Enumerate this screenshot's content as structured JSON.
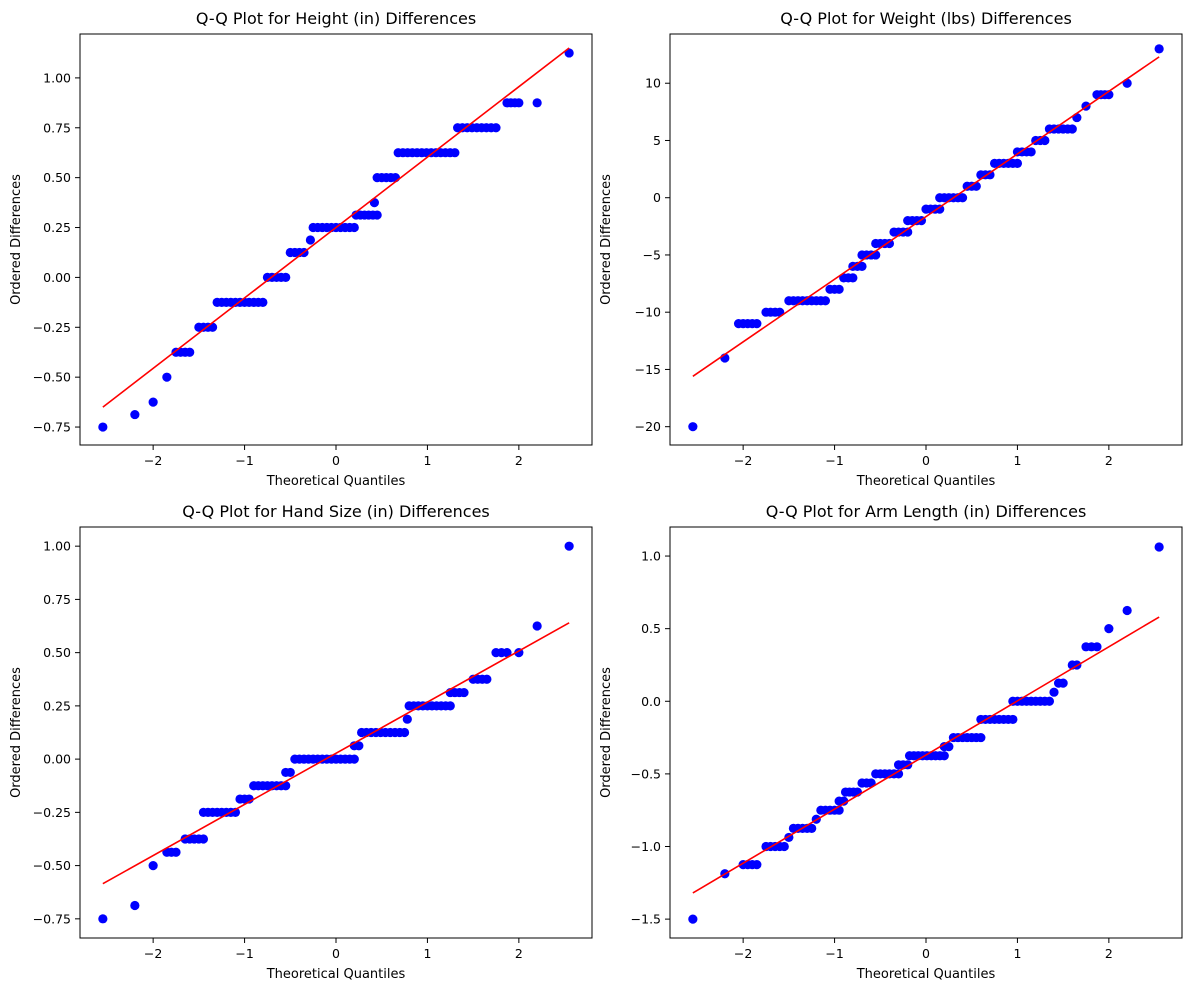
{
  "figure": {
    "background": "#ffffff",
    "point_color": "#0000ff",
    "line_color": "#ff0000"
  },
  "chart_data": [
    {
      "type": "scatter",
      "title": "Q-Q Plot for Height (in) Differences",
      "xlabel": "Theoretical Quantiles",
      "ylabel": "Ordered Differences",
      "xlim": [
        -2.8,
        2.8
      ],
      "ylim": [
        -0.84,
        1.22
      ],
      "xticks": [
        {
          "v": -2,
          "label": "−2"
        },
        {
          "v": -1,
          "label": "−1"
        },
        {
          "v": 0,
          "label": "0"
        },
        {
          "v": 1,
          "label": "1"
        },
        {
          "v": 2,
          "label": "2"
        }
      ],
      "yticks": [
        {
          "v": -0.75,
          "label": "−0.75"
        },
        {
          "v": -0.5,
          "label": "−0.50"
        },
        {
          "v": -0.25,
          "label": "−0.25"
        },
        {
          "v": 0,
          "label": "0.00"
        },
        {
          "v": 0.25,
          "label": "0.25"
        },
        {
          "v": 0.5,
          "label": "0.50"
        },
        {
          "v": 0.75,
          "label": "0.75"
        },
        {
          "v": 1.0,
          "label": "1.00"
        }
      ],
      "steps": [
        {
          "x0": -2.55,
          "x1": -2.55,
          "y": -0.75
        },
        {
          "x0": -2.2,
          "x1": -2.2,
          "y": -0.6875
        },
        {
          "x0": -2.0,
          "x1": -2.0,
          "y": -0.625
        },
        {
          "x0": -1.85,
          "x1": -1.85,
          "y": -0.5
        },
        {
          "x0": -1.75,
          "x1": -1.6,
          "y": -0.375
        },
        {
          "x0": -1.5,
          "x1": -1.35,
          "y": -0.25
        },
        {
          "x0": -1.3,
          "x1": -0.8,
          "y": -0.125
        },
        {
          "x0": -0.75,
          "x1": -0.55,
          "y": 0.0
        },
        {
          "x0": -0.5,
          "x1": -0.35,
          "y": 0.125
        },
        {
          "x0": -0.28,
          "x1": -0.28,
          "y": 0.1875
        },
        {
          "x0": -0.25,
          "x1": 0.2,
          "y": 0.25
        },
        {
          "x0": 0.22,
          "x1": 0.45,
          "y": 0.3125
        },
        {
          "x0": 0.42,
          "x1": 0.42,
          "y": 0.375
        },
        {
          "x0": 0.45,
          "x1": 0.65,
          "y": 0.5
        },
        {
          "x0": 0.68,
          "x1": 1.3,
          "y": 0.625
        },
        {
          "x0": 1.33,
          "x1": 1.75,
          "y": 0.75
        },
        {
          "x0": 1.87,
          "x1": 2.0,
          "y": 0.875
        },
        {
          "x0": 2.2,
          "x1": 2.2,
          "y": 0.875
        },
        {
          "x0": 2.55,
          "x1": 2.55,
          "y": 1.125
        }
      ],
      "fit_line": {
        "x": [
          -2.55,
          2.55
        ],
        "y": [
          -0.65,
          1.15
        ]
      }
    },
    {
      "type": "scatter",
      "title": "Q-Q Plot for Weight (lbs) Differences",
      "xlabel": "Theoretical Quantiles",
      "ylabel": "Ordered Differences",
      "xlim": [
        -2.8,
        2.8
      ],
      "ylim": [
        -21.6,
        14.3
      ],
      "xticks": [
        {
          "v": -2,
          "label": "−2"
        },
        {
          "v": -1,
          "label": "−1"
        },
        {
          "v": 0,
          "label": "0"
        },
        {
          "v": 1,
          "label": "1"
        },
        {
          "v": 2,
          "label": "2"
        }
      ],
      "yticks": [
        {
          "v": -20,
          "label": "−20"
        },
        {
          "v": -15,
          "label": "−15"
        },
        {
          "v": -10,
          "label": "−10"
        },
        {
          "v": -5,
          "label": "−5"
        },
        {
          "v": 0,
          "label": "0"
        },
        {
          "v": 5,
          "label": "5"
        },
        {
          "v": 10,
          "label": "10"
        }
      ],
      "steps": [
        {
          "x0": -2.55,
          "x1": -2.55,
          "y": -20
        },
        {
          "x0": -2.2,
          "x1": -2.2,
          "y": -14
        },
        {
          "x0": -2.05,
          "x1": -1.85,
          "y": -11
        },
        {
          "x0": -1.75,
          "x1": -1.6,
          "y": -10
        },
        {
          "x0": -1.5,
          "x1": -1.1,
          "y": -9
        },
        {
          "x0": -1.05,
          "x1": -0.95,
          "y": -8
        },
        {
          "x0": -0.9,
          "x1": -0.8,
          "y": -7
        },
        {
          "x0": -0.8,
          "x1": -0.7,
          "y": -6
        },
        {
          "x0": -0.7,
          "x1": -0.55,
          "y": -5
        },
        {
          "x0": -0.55,
          "x1": -0.4,
          "y": -4
        },
        {
          "x0": -0.35,
          "x1": -0.2,
          "y": -3
        },
        {
          "x0": -0.2,
          "x1": -0.05,
          "y": -2
        },
        {
          "x0": 0.0,
          "x1": 0.15,
          "y": -1
        },
        {
          "x0": 0.15,
          "x1": 0.4,
          "y": 0
        },
        {
          "x0": 0.45,
          "x1": 0.55,
          "y": 1
        },
        {
          "x0": 0.6,
          "x1": 0.7,
          "y": 2
        },
        {
          "x0": 0.75,
          "x1": 1.0,
          "y": 3
        },
        {
          "x0": 1.0,
          "x1": 1.15,
          "y": 4
        },
        {
          "x0": 1.2,
          "x1": 1.3,
          "y": 5
        },
        {
          "x0": 1.35,
          "x1": 1.6,
          "y": 6
        },
        {
          "x0": 1.65,
          "x1": 1.65,
          "y": 7
        },
        {
          "x0": 1.75,
          "x1": 1.75,
          "y": 8
        },
        {
          "x0": 1.87,
          "x1": 2.0,
          "y": 9
        },
        {
          "x0": 2.2,
          "x1": 2.2,
          "y": 10
        },
        {
          "x0": 2.55,
          "x1": 2.55,
          "y": 13
        }
      ],
      "fit_line": {
        "x": [
          -2.55,
          2.55
        ],
        "y": [
          -15.6,
          12.3
        ]
      }
    },
    {
      "type": "scatter",
      "title": "Q-Q Plot for Hand Size (in) Differences",
      "xlabel": "Theoretical Quantiles",
      "ylabel": "Ordered Differences",
      "xlim": [
        -2.8,
        2.8
      ],
      "ylim": [
        -0.84,
        1.09
      ],
      "xticks": [
        {
          "v": -2,
          "label": "−2"
        },
        {
          "v": -1,
          "label": "−1"
        },
        {
          "v": 0,
          "label": "0"
        },
        {
          "v": 1,
          "label": "1"
        },
        {
          "v": 2,
          "label": "2"
        }
      ],
      "yticks": [
        {
          "v": -0.75,
          "label": "−0.75"
        },
        {
          "v": -0.5,
          "label": "−0.50"
        },
        {
          "v": -0.25,
          "label": "−0.25"
        },
        {
          "v": 0,
          "label": "0.00"
        },
        {
          "v": 0.25,
          "label": "0.25"
        },
        {
          "v": 0.5,
          "label": "0.50"
        },
        {
          "v": 0.75,
          "label": "0.75"
        },
        {
          "v": 1.0,
          "label": "1.00"
        }
      ],
      "steps": [
        {
          "x0": -2.55,
          "x1": -2.55,
          "y": -0.75
        },
        {
          "x0": -2.2,
          "x1": -2.2,
          "y": -0.6875
        },
        {
          "x0": -2.0,
          "x1": -2.0,
          "y": -0.5
        },
        {
          "x0": -1.85,
          "x1": -1.75,
          "y": -0.4375
        },
        {
          "x0": -1.65,
          "x1": -1.45,
          "y": -0.375
        },
        {
          "x0": -1.45,
          "x1": -1.1,
          "y": -0.25
        },
        {
          "x0": -1.05,
          "x1": -0.95,
          "y": -0.1875
        },
        {
          "x0": -0.9,
          "x1": -0.55,
          "y": -0.125
        },
        {
          "x0": -0.55,
          "x1": -0.5,
          "y": -0.0625
        },
        {
          "x0": -0.45,
          "x1": 0.2,
          "y": 0.0
        },
        {
          "x0": 0.2,
          "x1": 0.25,
          "y": 0.0625
        },
        {
          "x0": 0.28,
          "x1": 0.75,
          "y": 0.125
        },
        {
          "x0": 0.78,
          "x1": 0.78,
          "y": 0.1875
        },
        {
          "x0": 0.8,
          "x1": 1.25,
          "y": 0.25
        },
        {
          "x0": 1.25,
          "x1": 1.4,
          "y": 0.3125
        },
        {
          "x0": 1.5,
          "x1": 1.65,
          "y": 0.375
        },
        {
          "x0": 1.75,
          "x1": 1.87,
          "y": 0.5
        },
        {
          "x0": 2.0,
          "x1": 2.0,
          "y": 0.5
        },
        {
          "x0": 2.2,
          "x1": 2.2,
          "y": 0.625
        },
        {
          "x0": 2.55,
          "x1": 2.55,
          "y": 1.0
        }
      ],
      "fit_line": {
        "x": [
          -2.55,
          2.55
        ],
        "y": [
          -0.585,
          0.64
        ]
      }
    },
    {
      "type": "scatter",
      "title": "Q-Q Plot for Arm Length (in) Differences",
      "xlabel": "Theoretical Quantiles",
      "ylabel": "Ordered Differences",
      "xlim": [
        -2.8,
        2.8
      ],
      "ylim": [
        -1.63,
        1.2
      ],
      "xticks": [
        {
          "v": -2,
          "label": "−2"
        },
        {
          "v": -1,
          "label": "−1"
        },
        {
          "v": 0,
          "label": "0"
        },
        {
          "v": 1,
          "label": "1"
        },
        {
          "v": 2,
          "label": "2"
        }
      ],
      "yticks": [
        {
          "v": -1.5,
          "label": "−1.5"
        },
        {
          "v": -1.0,
          "label": "−1.0"
        },
        {
          "v": -0.5,
          "label": "−0.5"
        },
        {
          "v": 0.0,
          "label": "0.0"
        },
        {
          "v": 0.5,
          "label": "0.5"
        },
        {
          "v": 1.0,
          "label": "1.0"
        }
      ],
      "steps": [
        {
          "x0": -2.55,
          "x1": -2.55,
          "y": -1.5
        },
        {
          "x0": -2.2,
          "x1": -2.2,
          "y": -1.1875
        },
        {
          "x0": -2.0,
          "x1": -1.85,
          "y": -1.125
        },
        {
          "x0": -1.75,
          "x1": -1.55,
          "y": -1.0
        },
        {
          "x0": -1.5,
          "x1": -1.5,
          "y": -0.9375
        },
        {
          "x0": -1.45,
          "x1": -1.25,
          "y": -0.875
        },
        {
          "x0": -1.2,
          "x1": -1.2,
          "y": -0.8125
        },
        {
          "x0": -1.15,
          "x1": -0.95,
          "y": -0.75
        },
        {
          "x0": -0.95,
          "x1": -0.9,
          "y": -0.6875
        },
        {
          "x0": -0.88,
          "x1": -0.75,
          "y": -0.625
        },
        {
          "x0": -0.7,
          "x1": -0.6,
          "y": -0.5625
        },
        {
          "x0": -0.55,
          "x1": -0.3,
          "y": -0.5
        },
        {
          "x0": -0.3,
          "x1": -0.2,
          "y": -0.4375
        },
        {
          "x0": -0.18,
          "x1": 0.2,
          "y": -0.375
        },
        {
          "x0": 0.2,
          "x1": 0.25,
          "y": -0.3125
        },
        {
          "x0": 0.3,
          "x1": 0.6,
          "y": -0.25
        },
        {
          "x0": 0.6,
          "x1": 0.95,
          "y": -0.125
        },
        {
          "x0": 0.95,
          "x1": 1.35,
          "y": 0.0
        },
        {
          "x0": 1.4,
          "x1": 1.4,
          "y": 0.0625
        },
        {
          "x0": 1.45,
          "x1": 1.5,
          "y": 0.125
        },
        {
          "x0": 1.6,
          "x1": 1.65,
          "y": 0.25
        },
        {
          "x0": 1.75,
          "x1": 1.87,
          "y": 0.375
        },
        {
          "x0": 2.0,
          "x1": 2.0,
          "y": 0.5
        },
        {
          "x0": 2.2,
          "x1": 2.2,
          "y": 0.625
        },
        {
          "x0": 2.55,
          "x1": 2.55,
          "y": 1.0625
        }
      ],
      "fit_line": {
        "x": [
          -2.55,
          2.55
        ],
        "y": [
          -1.32,
          0.58
        ]
      }
    }
  ]
}
